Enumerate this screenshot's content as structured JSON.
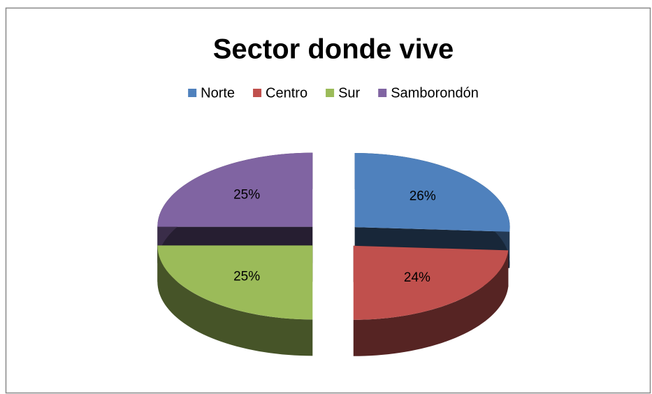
{
  "chart_data": {
    "type": "pie",
    "title": "Sector donde vive",
    "categories": [
      "Norte",
      "Centro",
      "Sur",
      "Samborondón"
    ],
    "values": [
      26,
      24,
      25,
      25
    ],
    "value_labels": [
      "26%",
      "24%",
      "25%",
      "25%"
    ],
    "colors": [
      "#4f81bd",
      "#c0504d",
      "#9bbb59",
      "#8064a2"
    ],
    "legend": "top"
  }
}
